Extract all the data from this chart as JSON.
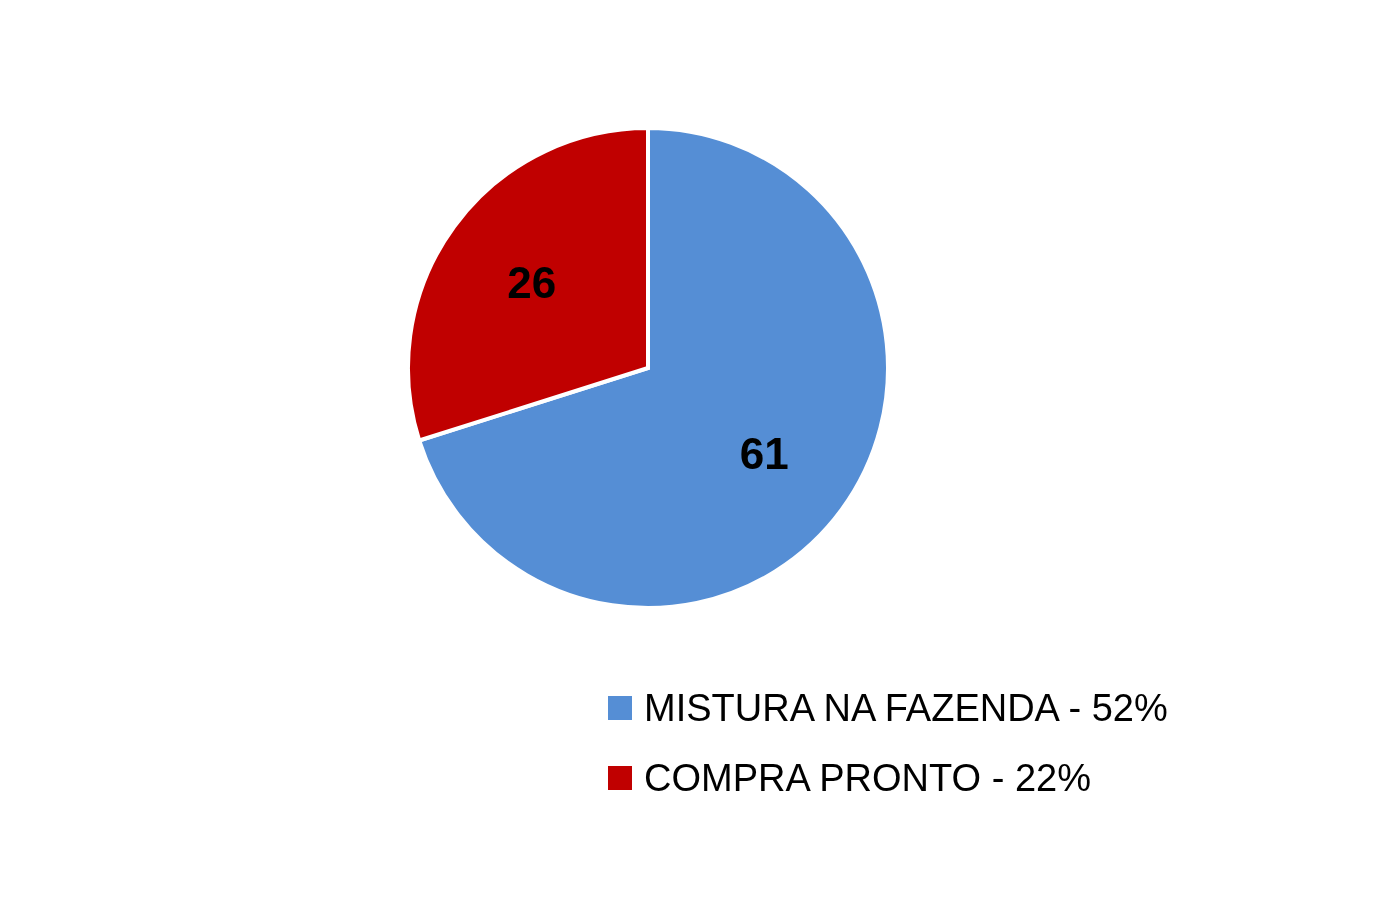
{
  "chart_data": {
    "type": "pie",
    "categories": [
      "MISTURA NA FAZENDA - 52%",
      "COMPRA PRONTO - 22%"
    ],
    "values": [
      61,
      26
    ],
    "colors": [
      "#558ed5",
      "#c00000"
    ],
    "data_labels": true,
    "legend": "bottom right"
  }
}
